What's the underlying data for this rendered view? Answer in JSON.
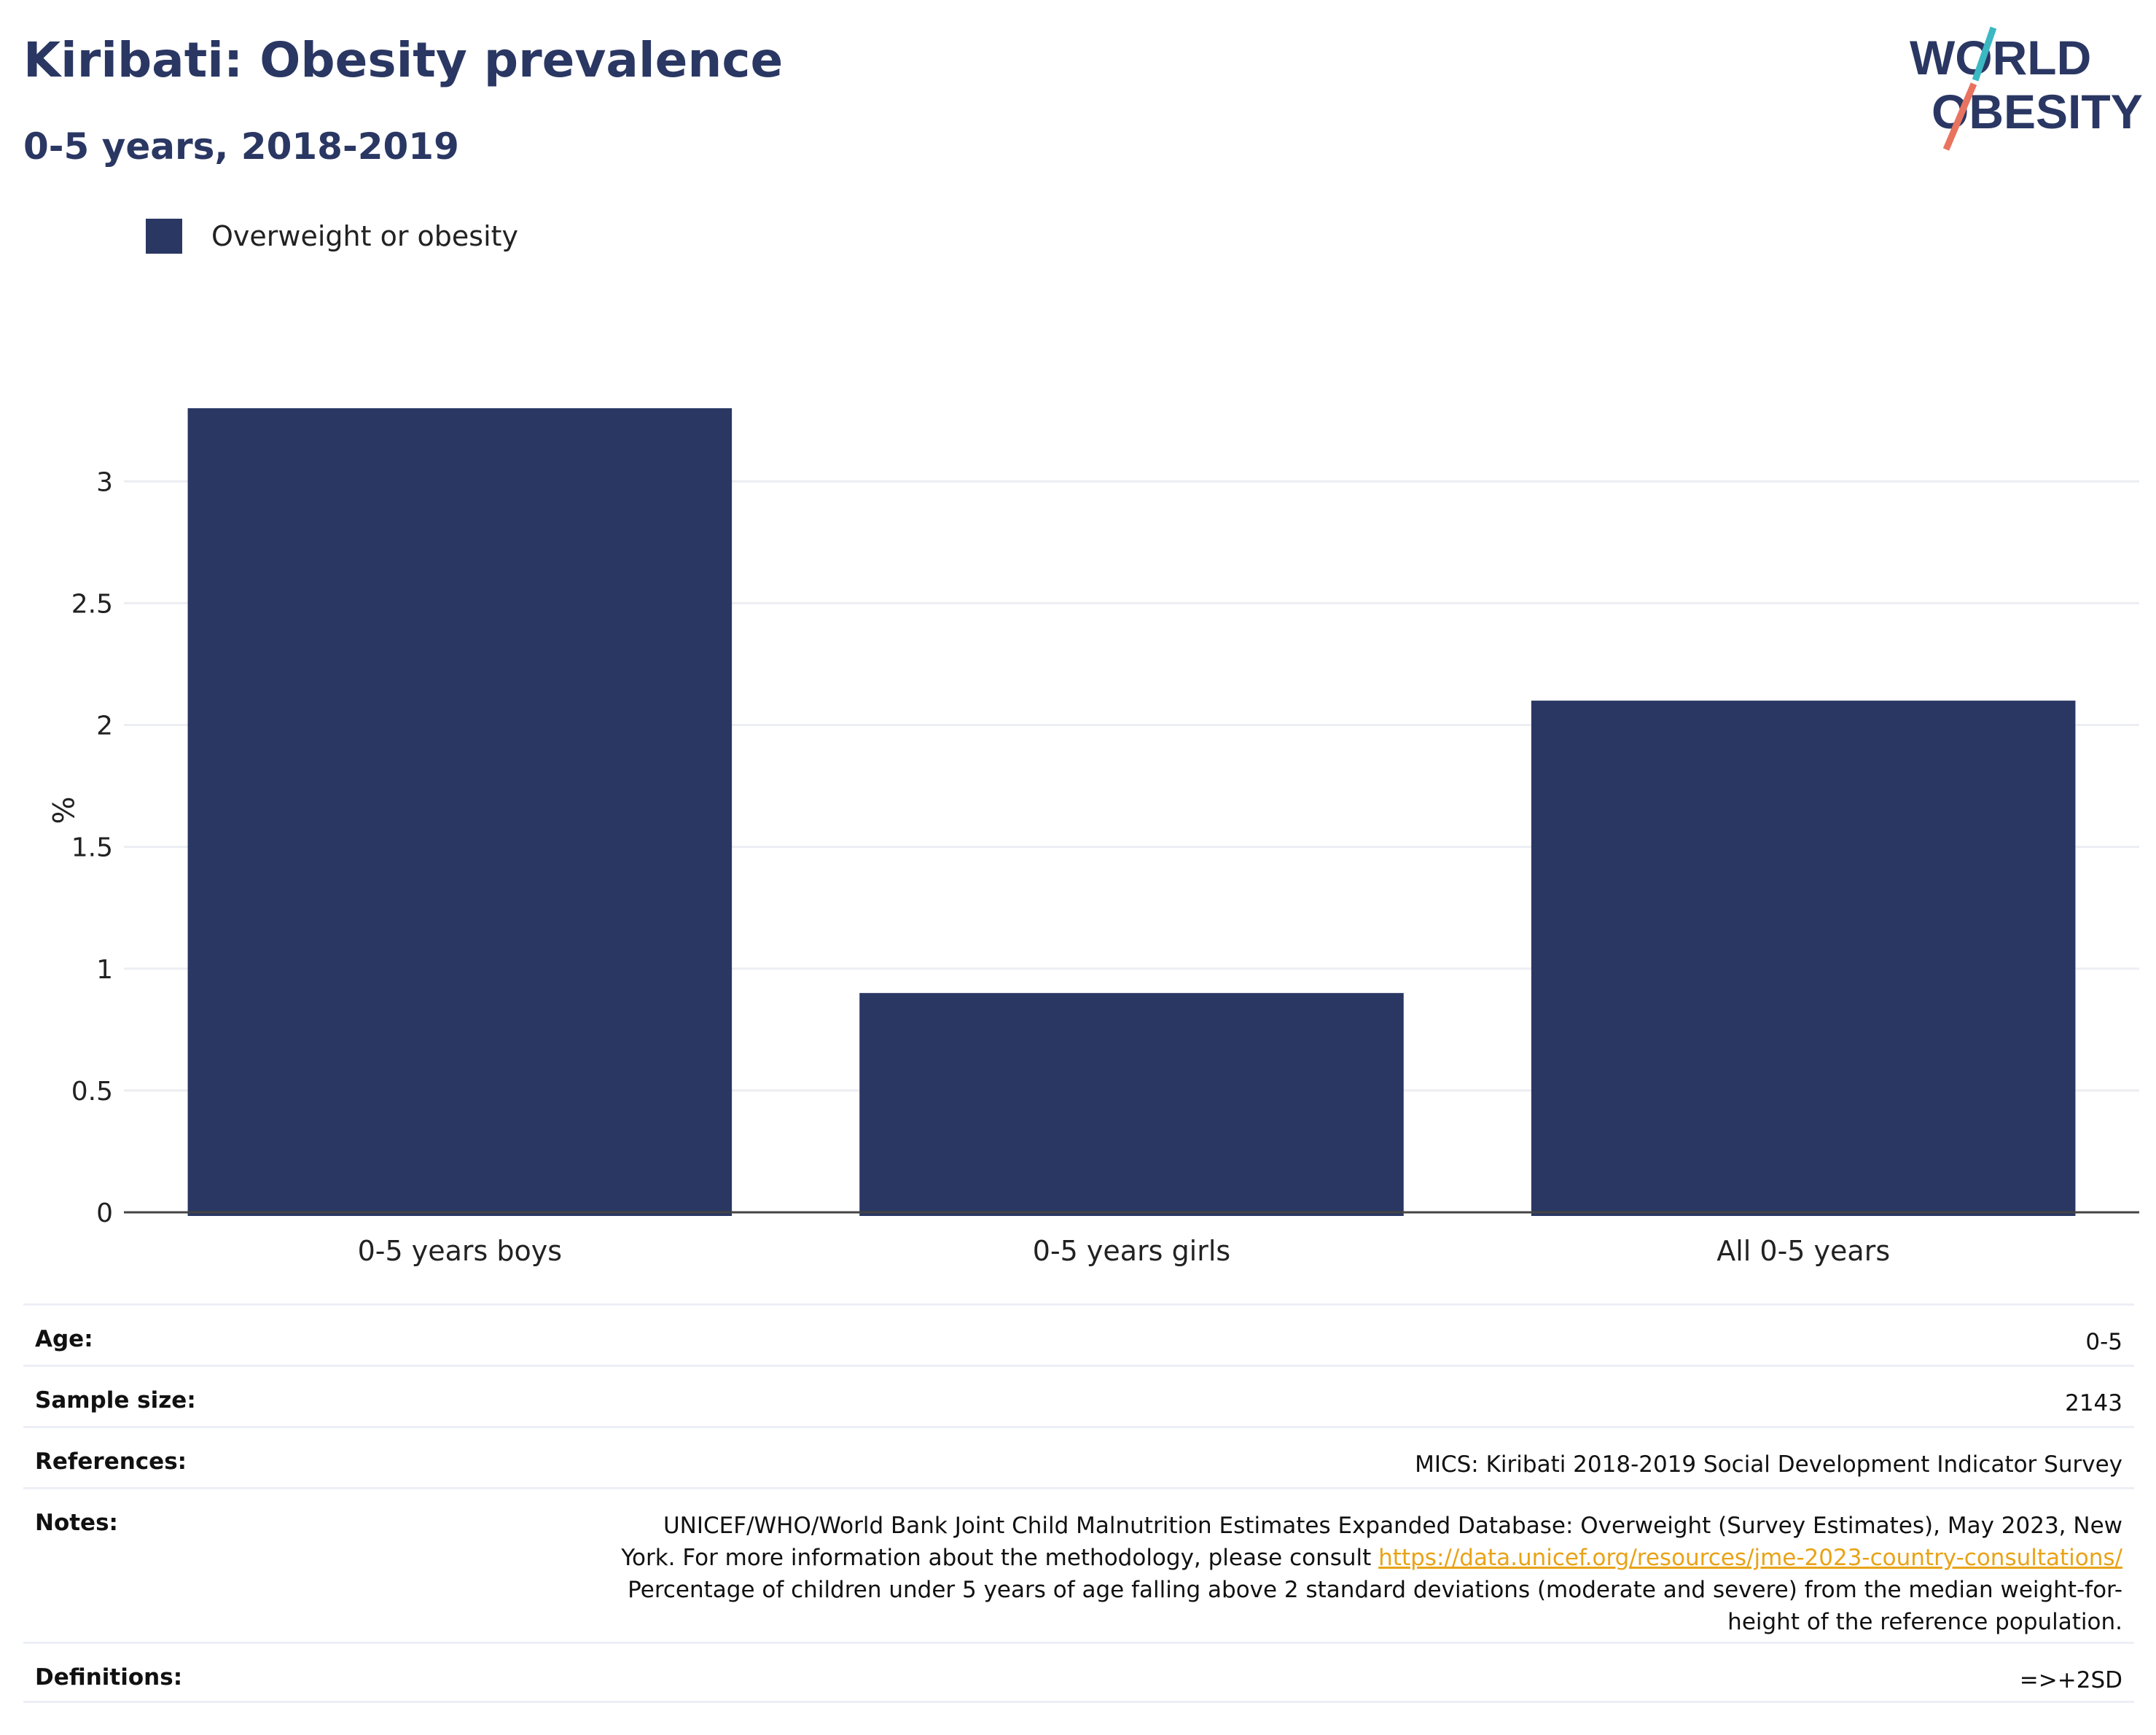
{
  "header": {
    "title": "Kiribati: Obesity prevalence",
    "subtitle": "0-5 years, 2018-2019"
  },
  "logo": {
    "line1": "WORLD",
    "line2": "OBESITY",
    "colors": {
      "text": "#2a3763",
      "teal": "#3cb8c2",
      "coral": "#e8735f"
    }
  },
  "legend": {
    "label": "Overweight or obesity",
    "color": "#2a3763"
  },
  "chart_data": {
    "type": "bar",
    "categories": [
      "0-5 years boys",
      "0-5 years girls",
      "All 0-5 years"
    ],
    "series": [
      {
        "name": "Overweight or obesity",
        "values": [
          3.3,
          0.9,
          2.1
        ]
      }
    ],
    "ylabel": "%",
    "ylim": [
      0,
      3.3
    ],
    "yticks": [
      "0",
      "0.5",
      "1",
      "1.5",
      "2",
      "2.5",
      "3"
    ],
    "grid": true,
    "legend_position": "top-left",
    "bar_color": "#2a3763"
  },
  "meta": {
    "age_label": "Age:",
    "age_value": "0-5",
    "sample_label": "Sample size:",
    "sample_value": "2143",
    "references_label": "References:",
    "references_value": "MICS: Kiribati 2018-2019 Social Development Indicator Survey",
    "notes_label": "Notes:",
    "notes_text_1": "UNICEF/WHO/World Bank Joint Child Malnutrition Estimates Expanded Database: Overweight (Survey Estimates), May 2023, New",
    "notes_text_2": "York. For more information about the methodology, please consult",
    "notes_link": "https://data.unicef.org/resources/jme-2023-country-consultations/",
    "notes_text_3": "Percentage of children under 5 years of age falling above 2 standard deviations (moderate and severe) from the median weight-for-",
    "notes_text_4": "height of the reference population.",
    "definitions_label": "Definitions:",
    "definitions_value": "=>+2SD"
  }
}
